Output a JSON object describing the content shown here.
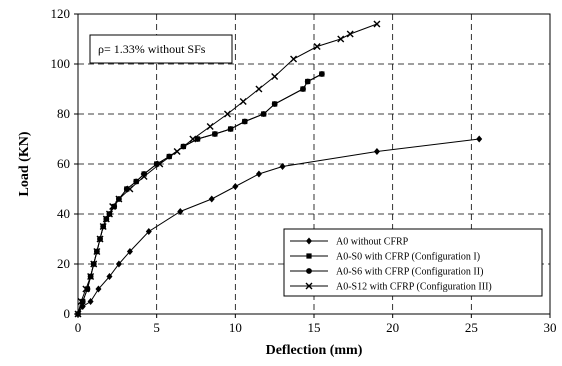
{
  "chart_data": {
    "type": "line",
    "title": "",
    "xlabel": "Deflection (mm)",
    "ylabel": "Load (KN)",
    "xlim": [
      0,
      30
    ],
    "ylim": [
      0,
      120
    ],
    "xticks": [
      0,
      5,
      10,
      15,
      20,
      25,
      30
    ],
    "yticks": [
      0,
      20,
      40,
      60,
      80,
      100,
      120
    ],
    "grid": "dashed",
    "legend_position": "bottom-right",
    "annotation": "ρ= 1.33%  without SFs",
    "series": [
      {
        "name": "A0 without CFRP",
        "marker": "diamond",
        "x": [
          0,
          0.3,
          0.8,
          1.3,
          2.0,
          2.6,
          3.3,
          4.5,
          6.5,
          8.5,
          10.0,
          11.5,
          13.0,
          19.0,
          25.5
        ],
        "y": [
          0,
          3,
          5,
          10,
          15,
          20,
          25,
          33,
          41,
          46,
          51,
          56,
          59,
          65,
          70
        ]
      },
      {
        "name": "A0-S0 with CFRP (Configuration I)",
        "marker": "square",
        "x": [
          0,
          0.3,
          0.6,
          0.8,
          1.0,
          1.2,
          1.4,
          1.6,
          1.8,
          2.0,
          2.3,
          2.6,
          3.1,
          3.7,
          4.2,
          5.0,
          5.8,
          6.7,
          7.6,
          8.7,
          9.7,
          10.6,
          11.8,
          12.5,
          14.3,
          14.6,
          15.5
        ],
        "y": [
          0,
          5,
          10,
          15,
          20,
          25,
          30,
          35,
          38,
          40,
          43,
          46,
          50,
          53,
          56,
          60,
          63,
          67,
          70,
          72,
          74,
          77,
          80,
          84,
          90,
          93,
          96
        ]
      },
      {
        "name": "A0-S6 with CFRP (Configuration II)",
        "marker": "circle",
        "x": [
          0,
          0.3,
          0.6,
          0.8,
          1.0,
          1.2,
          1.4,
          1.6,
          1.8,
          2.0,
          2.3,
          2.6,
          3.1,
          3.7,
          4.2,
          5.0,
          5.8,
          6.7,
          7.6,
          8.7,
          9.7,
          10.6,
          11.8,
          12.5,
          14.3,
          14.6,
          15.5
        ],
        "y": [
          0,
          5,
          10,
          15,
          20,
          25,
          30,
          35,
          38,
          40,
          43,
          46,
          50,
          53,
          56,
          60,
          63,
          67,
          70,
          72,
          74,
          77,
          80,
          84,
          90,
          93,
          96
        ]
      },
      {
        "name": "A0-S12 with CFRP (Configuration III)",
        "marker": "x",
        "x": [
          0,
          0.2,
          0.5,
          0.8,
          1.0,
          1.2,
          1.4,
          1.6,
          1.8,
          2.0,
          2.2,
          2.6,
          3.3,
          4.2,
          5.2,
          6.3,
          7.3,
          8.4,
          9.5,
          10.5,
          11.5,
          12.5,
          13.7,
          15.2,
          16.7,
          17.3,
          19.0
        ],
        "y": [
          0,
          5,
          10,
          15,
          20,
          25,
          30,
          35,
          38,
          40,
          43,
          46,
          50,
          55,
          60,
          65,
          70,
          75,
          80,
          85,
          90,
          95,
          102,
          107,
          110,
          112,
          116
        ]
      }
    ]
  }
}
